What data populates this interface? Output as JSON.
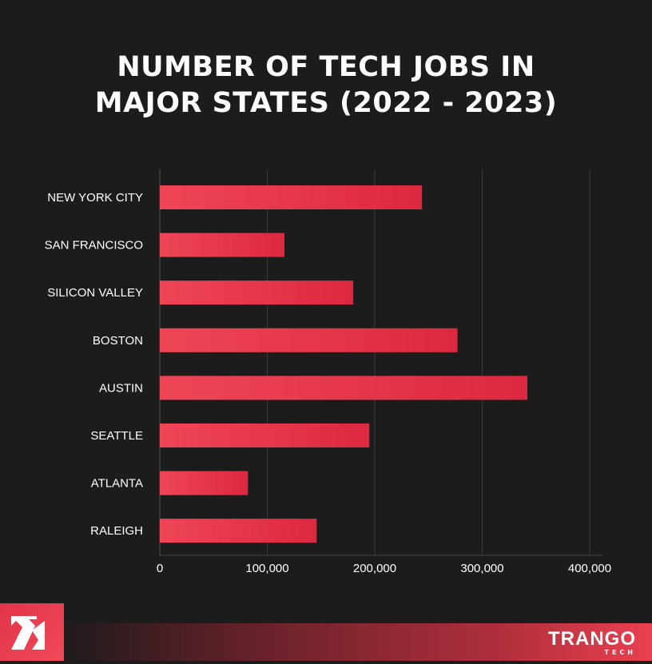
{
  "chart_data": {
    "type": "bar",
    "orientation": "horizontal",
    "title": "NUMBER OF TECH JOBS IN MAJOR STATES (2022 - 2023)",
    "title_lines": [
      "NUMBER OF TECH JOBS IN",
      "MAJOR STATES (2022 - 2023)"
    ],
    "categories": [
      "NEW YORK CITY",
      "SAN FRANCISCO",
      "SILICON VALLEY",
      "BOSTON",
      "AUSTIN",
      "SEATTLE",
      "ATLANTA",
      "RALEIGH"
    ],
    "values": [
      244000,
      116000,
      180000,
      277000,
      342000,
      195000,
      82000,
      146000
    ],
    "xlim": [
      0,
      400000
    ],
    "xticks": [
      0,
      100000,
      200000,
      300000,
      400000
    ],
    "xtick_labels": [
      "0",
      "100,000",
      "200,000",
      "300,000",
      "400,000"
    ],
    "xlabel": "",
    "ylabel": "",
    "grid": "vertical",
    "bar_color_start": "#ef4656",
    "bar_color_end": "#dc2840"
  },
  "branding": {
    "name": "TRANGO",
    "sub": "TECH",
    "logo": "trango-arrow-logo",
    "accent": "#e8404f"
  }
}
